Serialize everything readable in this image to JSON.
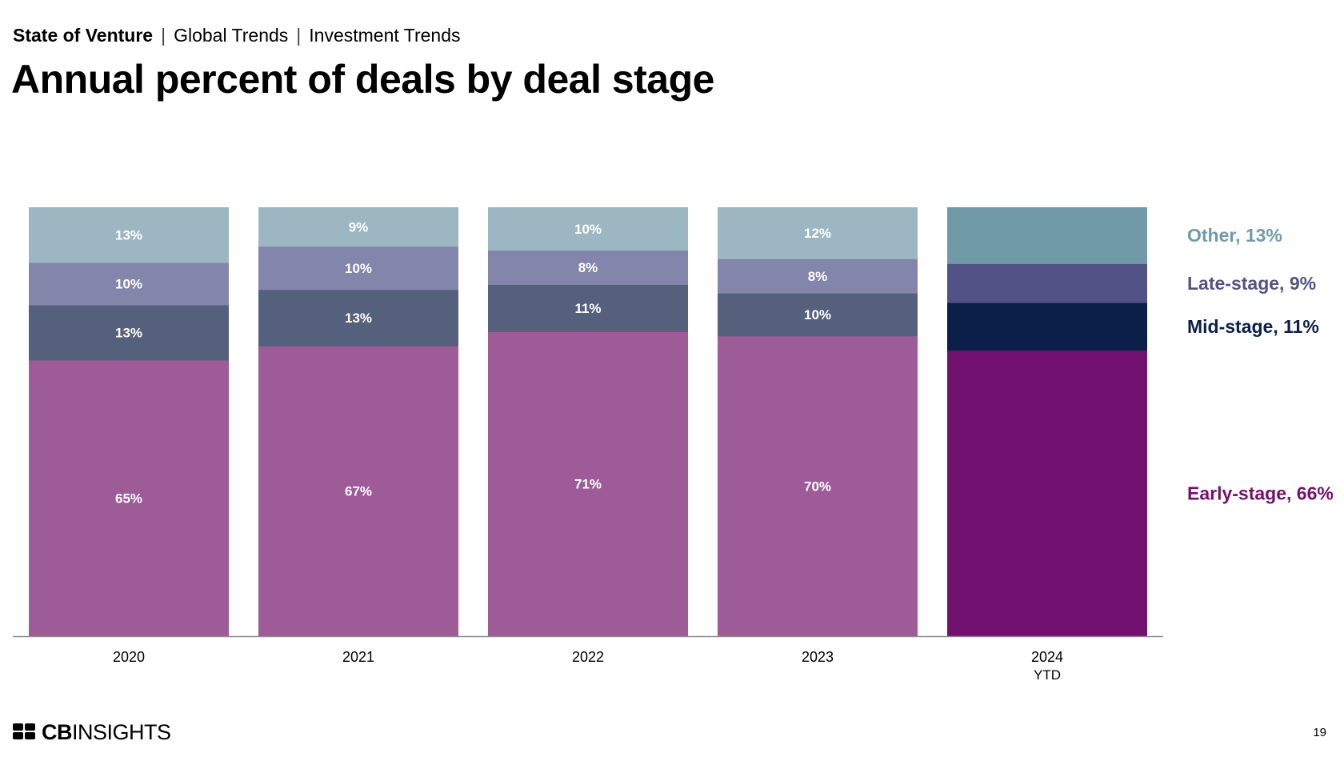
{
  "header": {
    "breadcrumb": [
      "State of Venture",
      "Global Trends",
      "Investment Trends"
    ],
    "separator": "|",
    "title": "Annual percent of deals by deal stage"
  },
  "chart_data": {
    "type": "bar",
    "stacked": true,
    "categories": [
      "2020",
      "2021",
      "2022",
      "2023",
      "2024"
    ],
    "category_sublabels": [
      "",
      "",
      "",
      "",
      "YTD"
    ],
    "ylim": [
      0,
      100
    ],
    "grid": false,
    "legend": "right",
    "series": [
      {
        "name": "Early-stage",
        "values": [
          65,
          67,
          71,
          70,
          66
        ],
        "labels": [
          "65%",
          "67%",
          "71%",
          "70%",
          ""
        ],
        "color": "#9d5c98",
        "highlight_color": "#721170",
        "legend_label": "Early-stage, 66%"
      },
      {
        "name": "Mid-stage",
        "values": [
          13,
          13,
          11,
          10,
          11
        ],
        "labels": [
          "13%",
          "13%",
          "11%",
          "10%",
          ""
        ],
        "color": "#55607d",
        "highlight_color": "#0c1f49",
        "legend_label": "Mid-stage, 11%"
      },
      {
        "name": "Late-stage",
        "values": [
          10,
          10,
          8,
          8,
          9
        ],
        "labels": [
          "10%",
          "10%",
          "8%",
          "8%",
          ""
        ],
        "color": "#8385ab",
        "highlight_color": "#525287",
        "legend_label": "Late-stage, 9%"
      },
      {
        "name": "Other",
        "values": [
          13,
          9,
          10,
          12,
          13
        ],
        "labels": [
          "13%",
          "9%",
          "10%",
          "12%",
          ""
        ],
        "color": "#9db7c2",
        "highlight_color": "#719aa8",
        "legend_label": "Other, 13%"
      }
    ],
    "highlight_category": "2024"
  },
  "footer": {
    "logo_bold": "CB",
    "logo_rest": "INSIGHTS",
    "page_number": "19"
  },
  "colors": {
    "axis": "#8a8a8a",
    "label_text": "#ffffff"
  }
}
